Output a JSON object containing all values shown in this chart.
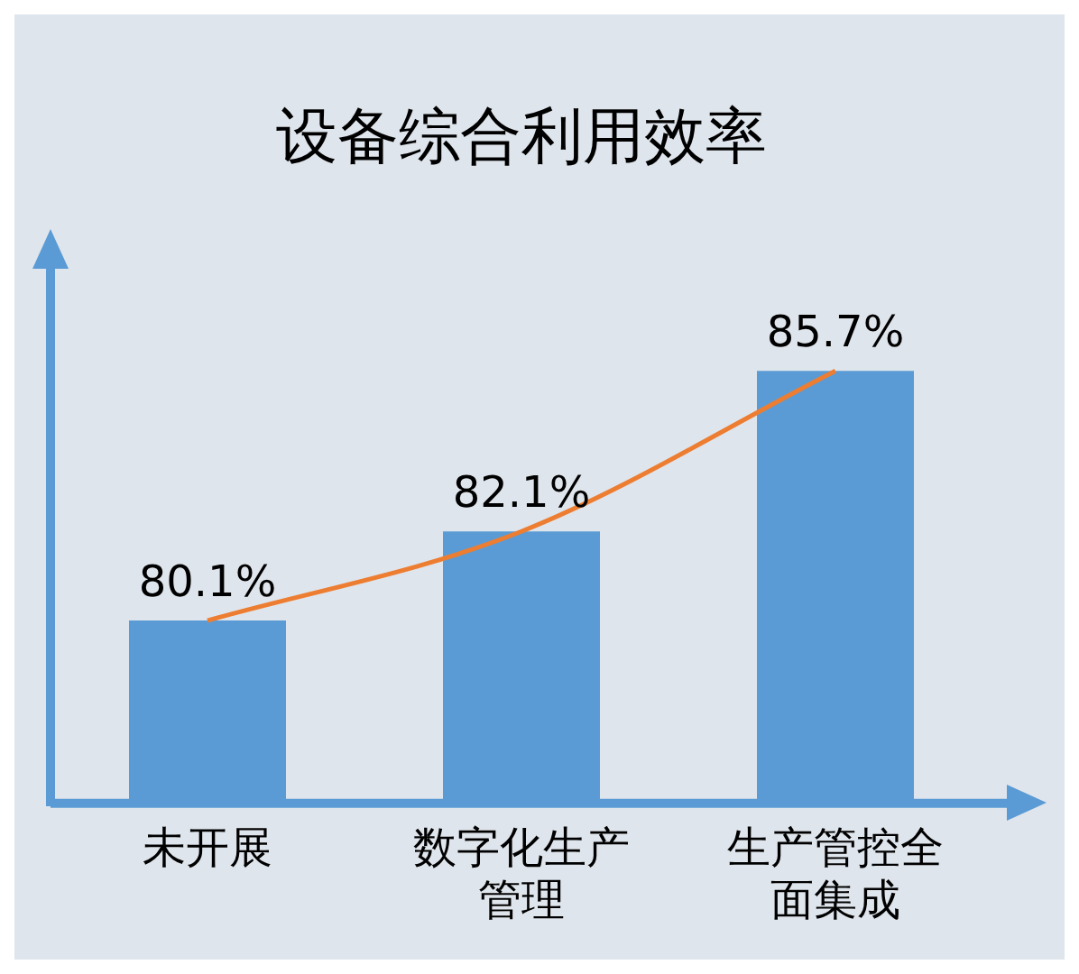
{
  "chart_data": {
    "type": "bar",
    "title": "设备综合利用效率",
    "categories": [
      "未开展",
      "数字化生产管理",
      "生产管控全面集成"
    ],
    "series": [
      {
        "color": "#5b9bd5",
        "values": [
          80.1,
          82.1,
          85.7
        ],
        "value_labels": [
          "80.1%",
          "82.1%",
          "85.7%"
        ]
      },
      {
        "type": "line",
        "color": "#ed7d31",
        "values": [
          80.1,
          82.1,
          85.7
        ]
      }
    ],
    "tick_labels": "x",
    "grid": false,
    "legend": false
  }
}
